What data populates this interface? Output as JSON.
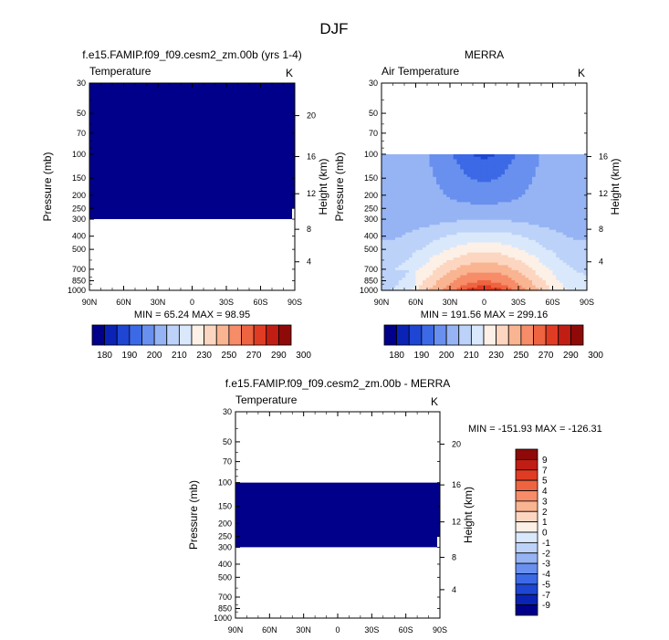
{
  "figure": {
    "title": "DJF"
  },
  "colorbar": {
    "colors": [
      "#00008b",
      "#0a23b4",
      "#1e46d2",
      "#3c69e6",
      "#6990ee",
      "#96b4f4",
      "#bcd2f8",
      "#dae8fc",
      "#fdf0e6",
      "#fcd6c0",
      "#f9b491",
      "#f68c68",
      "#ee6440",
      "#e03c24",
      "#c01e14",
      "#8e0a08"
    ]
  },
  "chart_data": [
    {
      "type": "heatmap",
      "title": "f.e15.FAMIP.f09_f09.cesm2_zm.00b (yrs 1-4)",
      "left_label": "Temperature",
      "units": "K",
      "ylabel": "Pressure (mb)",
      "ylabel_right": "Height (km)",
      "x_ticks": [
        "90N",
        "60N",
        "30N",
        "0",
        "30S",
        "60S",
        "90S"
      ],
      "y_ticks": [
        "30",
        "50",
        "70",
        "100",
        "150",
        "200",
        "250",
        "300",
        "400",
        "500",
        "700",
        "850",
        "1000"
      ],
      "height_ticks": [
        "20",
        "16",
        "12",
        "8",
        "4"
      ],
      "stats": "MIN = 65.24  MAX = 98.95",
      "colorbar_labels": [
        "180",
        "190",
        "200",
        "210",
        "230",
        "250",
        "270",
        "290",
        "300"
      ],
      "field": {
        "fill": "#00008b",
        "p_top": 30,
        "p_bottom": 300,
        "value_range": [
          65.24,
          98.95
        ]
      }
    },
    {
      "type": "heatmap",
      "title": "MERRA",
      "left_label": "Air Temperature",
      "units": "K",
      "ylabel": "Pressure (mb)",
      "ylabel_right": "Height (km)",
      "x_ticks": [
        "90N",
        "60N",
        "30N",
        "0",
        "30S",
        "60S",
        "90S"
      ],
      "y_ticks": [
        "30",
        "50",
        "70",
        "100",
        "150",
        "200",
        "250",
        "300",
        "400",
        "500",
        "700",
        "850",
        "1000"
      ],
      "height_ticks": [
        "16",
        "12",
        "8",
        "4"
      ],
      "stats": "MIN = 191.56  MAX = 299.16",
      "colorbar_labels": [
        "180",
        "190",
        "200",
        "210",
        "230",
        "250",
        "270",
        "290",
        "300"
      ],
      "field": {
        "p_top": 100,
        "p_bottom": 1000,
        "value_range": [
          191.56,
          299.16
        ]
      }
    },
    {
      "type": "heatmap",
      "title": "f.e15.FAMIP.f09_f09.cesm2_zm.00b - MERRA",
      "left_label": "Temperature",
      "units": "K",
      "ylabel": "Pressure (mb)",
      "ylabel_right": "Height (km)",
      "x_ticks": [
        "90N",
        "60N",
        "30N",
        "0",
        "30S",
        "60S",
        "90S"
      ],
      "y_ticks": [
        "30",
        "50",
        "70",
        "100",
        "150",
        "200",
        "250",
        "300",
        "400",
        "500",
        "700",
        "850",
        "1000"
      ],
      "height_ticks": [
        "20",
        "16",
        "12",
        "8",
        "4"
      ],
      "stats": "MIN = -151.93  MAX = -126.31",
      "colorbar_labels": [
        "9",
        "7",
        "5",
        "4",
        "3",
        "2",
        "1",
        "0",
        "-1",
        "-2",
        "-3",
        "-4",
        "-5",
        "-7",
        "-9"
      ],
      "field": {
        "fill": "#00008b",
        "p_top": 100,
        "p_bottom": 300,
        "value_range": [
          -151.93,
          -126.31
        ]
      }
    }
  ]
}
